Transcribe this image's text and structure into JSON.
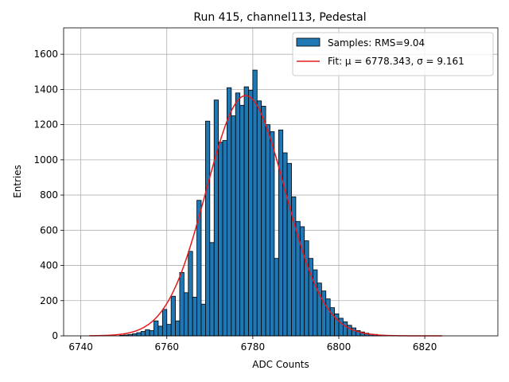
{
  "chart_data": {
    "type": "bar",
    "title": "Run 415, channel113, Pedestal",
    "xlabel": "ADC Counts",
    "ylabel": "Entries",
    "xlim": [
      6736,
      6837
    ],
    "ylim": [
      0,
      1750
    ],
    "xticks": [
      6740,
      6760,
      6780,
      6800,
      6820
    ],
    "yticks": [
      0,
      200,
      400,
      600,
      800,
      1000,
      1200,
      1400,
      1600
    ],
    "grid": true,
    "legend_position": "top-right",
    "series": [
      {
        "name": "Samples: RMS=9.04",
        "kind": "histogram",
        "color": "#1f77b4",
        "edgecolor": "#000000",
        "bin_start": 6749,
        "bin_width": 1,
        "counts": [
          3,
          5,
          8,
          12,
          18,
          25,
          35,
          30,
          85,
          55,
          150,
          65,
          225,
          85,
          360,
          245,
          480,
          220,
          770,
          180,
          1220,
          530,
          1340,
          1100,
          1110,
          1410,
          1250,
          1380,
          1310,
          1415,
          1395,
          1510,
          1335,
          1305,
          1200,
          1160,
          440,
          1170,
          1040,
          980,
          790,
          650,
          620,
          540,
          440,
          375,
          300,
          255,
          210,
          160,
          125,
          100,
          80,
          60,
          45,
          30,
          22,
          15,
          10,
          8,
          5,
          3
        ]
      },
      {
        "name": "Fit: μ = 6778.343, σ = 9.161",
        "kind": "gaussian_fit",
        "color": "#e41a1c",
        "mu": 6778.343,
        "sigma": 9.161,
        "amplitude": 1365,
        "x_range": [
          6742,
          6824
        ]
      }
    ]
  }
}
